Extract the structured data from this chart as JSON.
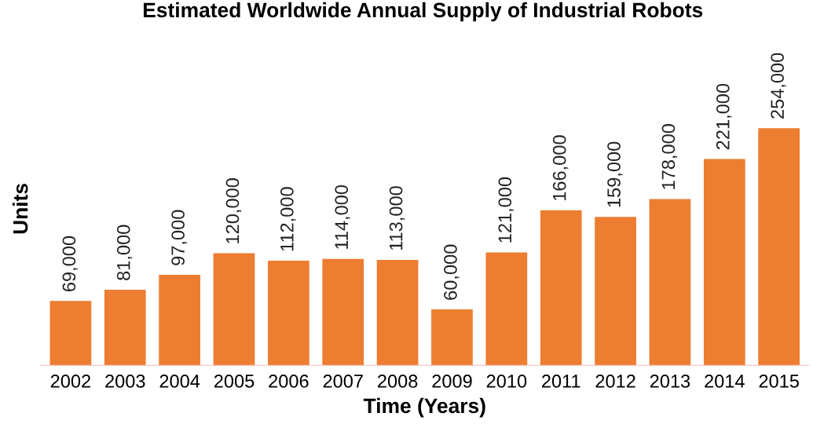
{
  "chart_data": {
    "type": "bar",
    "title": "Estimated Worldwide Annual Supply of Industrial Robots",
    "xlabel": "Time (Years)",
    "ylabel": "Units",
    "categories": [
      "2002",
      "2003",
      "2004",
      "2005",
      "2006",
      "2007",
      "2008",
      "2009",
      "2010",
      "2011",
      "2012",
      "2013",
      "2014",
      "2015"
    ],
    "values": [
      69000,
      81000,
      97000,
      120000,
      112000,
      114000,
      113000,
      60000,
      121000,
      166000,
      159000,
      178000,
      221000,
      254000
    ],
    "value_labels": [
      "69,000",
      "81,000",
      "97,000",
      "120,000",
      "112,000",
      "114,000",
      "113,000",
      "60,000",
      "121,000",
      "166,000",
      "159,000",
      "178,000",
      "221,000",
      "254,000"
    ],
    "color": "#ed7d31",
    "grid": false,
    "legend": false
  }
}
